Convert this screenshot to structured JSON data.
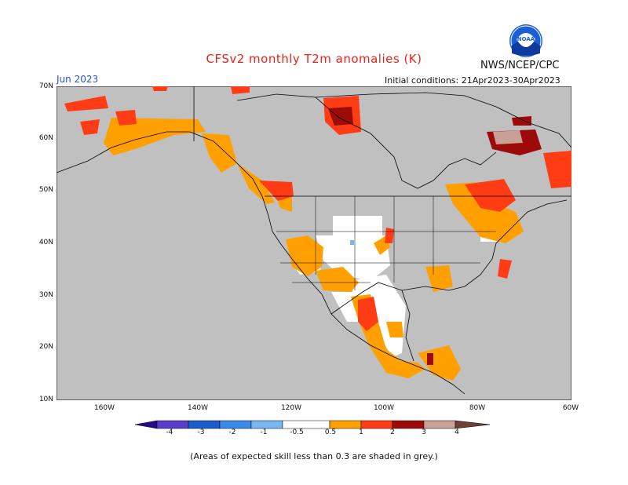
{
  "title": "CFSv2 monthly T2m anomalies (K)",
  "agency": "NWS/NCEP/CPC",
  "valid_month": "Jun 2023",
  "initial_conditions": "Initial conditions: 21Apr2023-30Apr2023",
  "logo_text": "NOAA",
  "footnote": "(Areas of expected skill less than 0.3 are shaded in grey.)",
  "map": {
    "lat_labels": [
      "70N",
      "60N",
      "50N",
      "40N",
      "30N",
      "20N",
      "10N"
    ],
    "lon_labels": [
      "160W",
      "140W",
      "120W",
      "100W",
      "80W",
      "60W"
    ],
    "background_color": "#c0c0c0",
    "land_no_skill_color": "#c0c0c0"
  },
  "colorbar": {
    "labels": [
      "-4",
      "-3",
      "-2",
      "-1",
      "-0.5",
      "0.5",
      "1",
      "2",
      "3",
      "4"
    ],
    "colors": [
      "#2a0a8c",
      "#5a3cc8",
      "#1a5cc8",
      "#3a8ae6",
      "#78b6f0",
      "#ffffff",
      "#ffa000",
      "#ff3c14",
      "#9c0a0a",
      "#c8a096",
      "#6e4036"
    ]
  }
}
